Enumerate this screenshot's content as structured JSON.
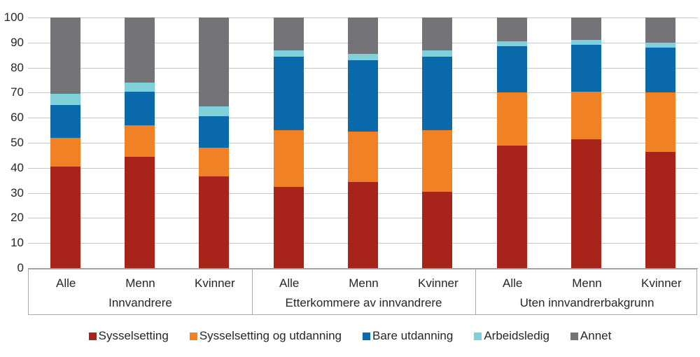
{
  "chart_data": {
    "type": "bar",
    "variant": "stacked-vertical",
    "title": "",
    "xlabel": "",
    "ylabel": "",
    "ylim": [
      0,
      100
    ],
    "y_ticks": [
      0,
      10,
      20,
      30,
      40,
      50,
      60,
      70,
      80,
      90,
      100
    ],
    "grid": true,
    "legend_position": "bottom",
    "categories": [
      "Alle",
      "Menn",
      "Kvinner",
      "Alle",
      "Menn",
      "Kvinner",
      "Alle",
      "Menn",
      "Kvinner"
    ],
    "groups": [
      {
        "label": "Innvandrere",
        "span": 3
      },
      {
        "label": "Etterkommere av innvandrere",
        "span": 3
      },
      {
        "label": "Uten innvandrerbakgrunn",
        "span": 3
      }
    ],
    "series": [
      {
        "name": "Sysselsetting",
        "color": "#A8231A",
        "values": [
          40.5,
          44.5,
          36.5,
          32.5,
          34.5,
          30.5,
          49.0,
          51.5,
          46.5
        ]
      },
      {
        "name": "Sysselsetting og utdanning",
        "color": "#F08124",
        "values": [
          11.5,
          12.5,
          11.5,
          22.5,
          20.0,
          24.5,
          21.0,
          19.0,
          23.5
        ]
      },
      {
        "name": "Bare utdanning",
        "color": "#0B6AAB",
        "values": [
          13.0,
          13.5,
          12.5,
          29.5,
          28.5,
          29.5,
          18.5,
          18.5,
          18.0
        ]
      },
      {
        "name": "Arbeidsledig",
        "color": "#80D0DC",
        "values": [
          4.5,
          3.5,
          4.0,
          2.5,
          2.5,
          2.5,
          2.0,
          2.0,
          2.0
        ]
      },
      {
        "name": "Annet",
        "color": "#747378",
        "values": [
          30.5,
          26.0,
          35.5,
          13.0,
          14.5,
          13.0,
          9.5,
          9.0,
          10.0
        ]
      }
    ]
  },
  "style": {
    "gridline_color": "#c7c7c7",
    "baseline_color": "#9e9e9e",
    "box_border_color": "#a8a8a8",
    "text_color": "#262626",
    "background": "#ffffff"
  }
}
